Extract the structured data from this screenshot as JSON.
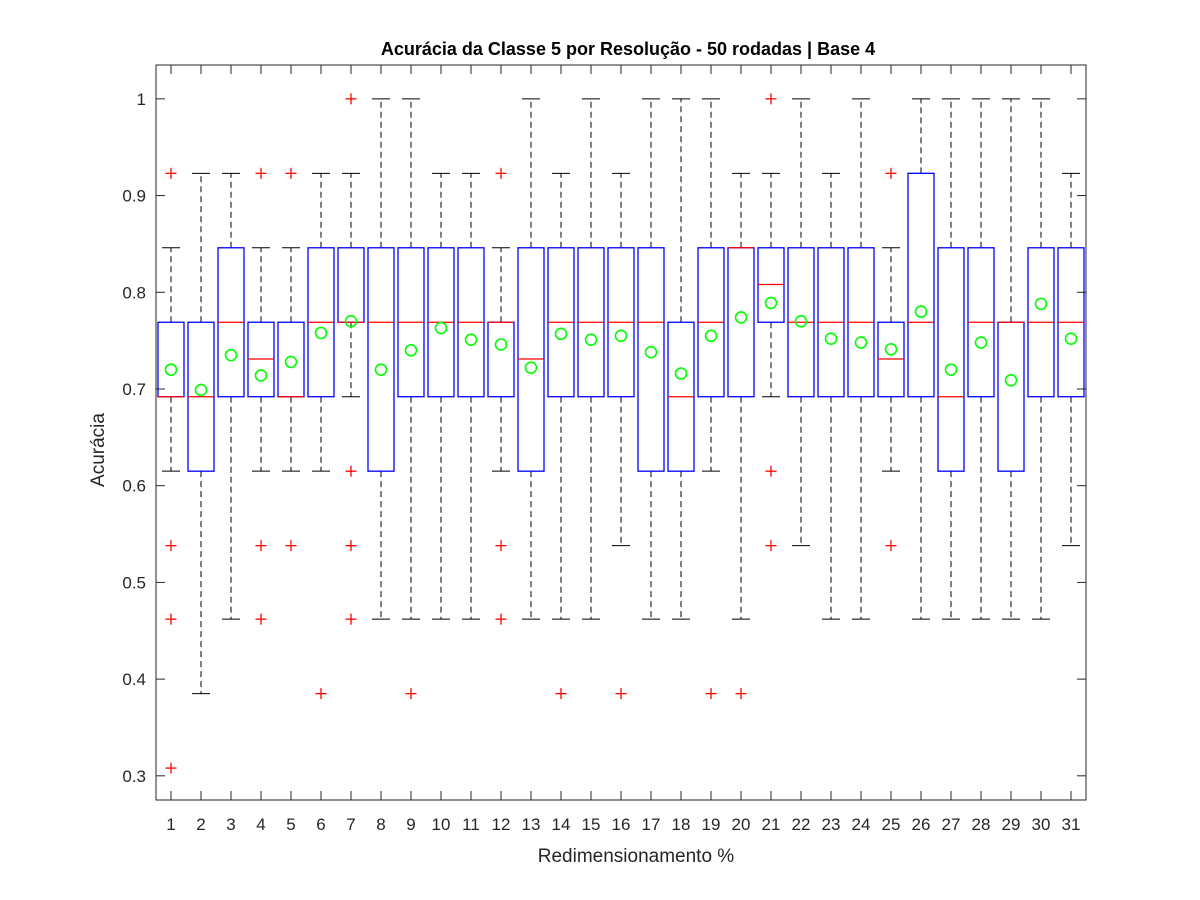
{
  "chart_data": {
    "type": "boxplot",
    "title": "Acurácia da Classe 5 por Resolução - 50 rodadas | Base 4",
    "xlabel": "Redimensionamento %",
    "ylabel": "Acurácia",
    "ylim": [
      0.275,
      1.035
    ],
    "yticks": [
      0.3,
      0.4,
      0.5,
      0.6,
      0.7,
      0.8,
      0.9,
      1
    ],
    "ytick_labels": [
      "0.3",
      "0.4",
      "0.5",
      "0.6",
      "0.7",
      "0.8",
      "0.9",
      "1"
    ],
    "categories": [
      "1",
      "2",
      "3",
      "4",
      "5",
      "6",
      "7",
      "8",
      "9",
      "10",
      "11",
      "12",
      "13",
      "14",
      "15",
      "16",
      "17",
      "18",
      "19",
      "20",
      "21",
      "22",
      "23",
      "24",
      "25",
      "26",
      "27",
      "28",
      "29",
      "30",
      "31"
    ],
    "colors": {
      "box": "#0000ff",
      "median": "#ff0000",
      "whisker": "#000000",
      "outlier": "#ff0000",
      "mean": "#00ff00"
    },
    "boxes": [
      {
        "q1": 0.692,
        "median": 0.692,
        "q3": 0.769,
        "wlo": 0.615,
        "whi": 0.846,
        "mean": 0.72,
        "outliers": [
          0.923,
          0.538,
          0.462,
          0.308
        ]
      },
      {
        "q1": 0.615,
        "median": 0.692,
        "q3": 0.769,
        "wlo": 0.385,
        "whi": 0.923,
        "mean": 0.699,
        "outliers": []
      },
      {
        "q1": 0.692,
        "median": 0.769,
        "q3": 0.846,
        "wlo": 0.462,
        "whi": 0.923,
        "mean": 0.735,
        "outliers": []
      },
      {
        "q1": 0.692,
        "median": 0.731,
        "q3": 0.769,
        "wlo": 0.615,
        "whi": 0.846,
        "mean": 0.714,
        "outliers": [
          0.923,
          0.538,
          0.462
        ]
      },
      {
        "q1": 0.692,
        "median": 0.692,
        "q3": 0.769,
        "wlo": 0.615,
        "whi": 0.846,
        "mean": 0.728,
        "outliers": [
          0.923,
          0.538
        ]
      },
      {
        "q1": 0.692,
        "median": 0.769,
        "q3": 0.846,
        "wlo": 0.615,
        "whi": 0.923,
        "mean": 0.758,
        "outliers": [
          0.385
        ]
      },
      {
        "q1": 0.769,
        "median": 0.769,
        "q3": 0.846,
        "wlo": 0.692,
        "whi": 0.923,
        "mean": 0.77,
        "outliers": [
          1.0,
          0.615,
          0.538,
          0.462
        ]
      },
      {
        "q1": 0.615,
        "median": 0.769,
        "q3": 0.846,
        "wlo": 0.462,
        "whi": 1.0,
        "mean": 0.72,
        "outliers": []
      },
      {
        "q1": 0.692,
        "median": 0.769,
        "q3": 0.846,
        "wlo": 0.462,
        "whi": 1.0,
        "mean": 0.74,
        "outliers": [
          0.385
        ]
      },
      {
        "q1": 0.692,
        "median": 0.769,
        "q3": 0.846,
        "wlo": 0.462,
        "whi": 0.923,
        "mean": 0.763,
        "outliers": []
      },
      {
        "q1": 0.692,
        "median": 0.769,
        "q3": 0.846,
        "wlo": 0.462,
        "whi": 0.923,
        "mean": 0.751,
        "outliers": []
      },
      {
        "q1": 0.692,
        "median": 0.769,
        "q3": 0.769,
        "wlo": 0.615,
        "whi": 0.846,
        "mean": 0.746,
        "outliers": [
          0.923,
          0.538,
          0.462
        ]
      },
      {
        "q1": 0.615,
        "median": 0.731,
        "q3": 0.846,
        "wlo": 0.462,
        "whi": 1.0,
        "mean": 0.722,
        "outliers": []
      },
      {
        "q1": 0.692,
        "median": 0.769,
        "q3": 0.846,
        "wlo": 0.462,
        "whi": 0.923,
        "mean": 0.757,
        "outliers": [
          0.385
        ]
      },
      {
        "q1": 0.692,
        "median": 0.769,
        "q3": 0.846,
        "wlo": 0.462,
        "whi": 1.0,
        "mean": 0.751,
        "outliers": []
      },
      {
        "q1": 0.692,
        "median": 0.769,
        "q3": 0.846,
        "wlo": 0.538,
        "whi": 0.923,
        "mean": 0.755,
        "outliers": [
          0.385
        ]
      },
      {
        "q1": 0.615,
        "median": 0.769,
        "q3": 0.846,
        "wlo": 0.462,
        "whi": 1.0,
        "mean": 0.738,
        "outliers": []
      },
      {
        "q1": 0.615,
        "median": 0.692,
        "q3": 0.769,
        "wlo": 0.462,
        "whi": 1.0,
        "mean": 0.716,
        "outliers": []
      },
      {
        "q1": 0.692,
        "median": 0.769,
        "q3": 0.846,
        "wlo": 0.615,
        "whi": 1.0,
        "mean": 0.755,
        "outliers": [
          0.385
        ]
      },
      {
        "q1": 0.692,
        "median": 0.846,
        "q3": 0.846,
        "wlo": 0.462,
        "whi": 0.923,
        "mean": 0.774,
        "outliers": [
          0.385
        ]
      },
      {
        "q1": 0.769,
        "median": 0.808,
        "q3": 0.846,
        "wlo": 0.692,
        "whi": 0.923,
        "mean": 0.789,
        "outliers": [
          1.0,
          0.615,
          0.538
        ]
      },
      {
        "q1": 0.692,
        "median": 0.769,
        "q3": 0.846,
        "wlo": 0.538,
        "whi": 1.0,
        "mean": 0.77,
        "outliers": []
      },
      {
        "q1": 0.692,
        "median": 0.769,
        "q3": 0.846,
        "wlo": 0.462,
        "whi": 0.923,
        "mean": 0.752,
        "outliers": []
      },
      {
        "q1": 0.692,
        "median": 0.769,
        "q3": 0.846,
        "wlo": 0.462,
        "whi": 1.0,
        "mean": 0.748,
        "outliers": []
      },
      {
        "q1": 0.692,
        "median": 0.731,
        "q3": 0.769,
        "wlo": 0.615,
        "whi": 0.846,
        "mean": 0.741,
        "outliers": [
          0.923,
          0.538
        ]
      },
      {
        "q1": 0.692,
        "median": 0.769,
        "q3": 0.923,
        "wlo": 0.462,
        "whi": 1.0,
        "mean": 0.78,
        "outliers": []
      },
      {
        "q1": 0.615,
        "median": 0.692,
        "q3": 0.846,
        "wlo": 0.462,
        "whi": 1.0,
        "mean": 0.72,
        "outliers": []
      },
      {
        "q1": 0.692,
        "median": 0.769,
        "q3": 0.846,
        "wlo": 0.462,
        "whi": 1.0,
        "mean": 0.748,
        "outliers": []
      },
      {
        "q1": 0.615,
        "median": 0.769,
        "q3": 0.769,
        "wlo": 0.462,
        "whi": 1.0,
        "mean": 0.709,
        "outliers": []
      },
      {
        "q1": 0.692,
        "median": 0.769,
        "q3": 0.846,
        "wlo": 0.462,
        "whi": 1.0,
        "mean": 0.788,
        "outliers": []
      },
      {
        "q1": 0.692,
        "median": 0.769,
        "q3": 0.846,
        "wlo": 0.538,
        "whi": 0.923,
        "mean": 0.752,
        "outliers": []
      }
    ]
  }
}
